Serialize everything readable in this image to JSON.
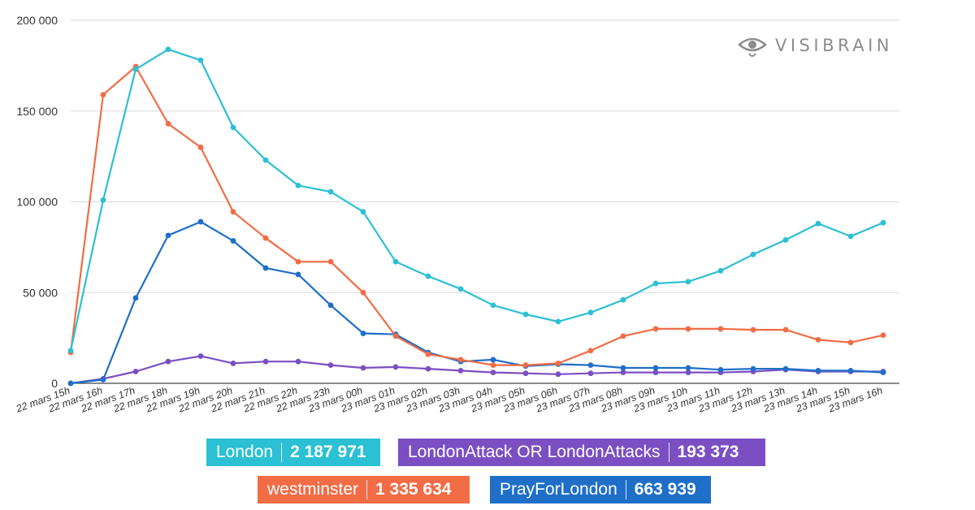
{
  "brand": {
    "name": "VISIBRAIN",
    "icon": "eye-logo-icon"
  },
  "chart_data": {
    "type": "line",
    "title": "",
    "xlabel": "",
    "ylabel": "",
    "ylim": [
      0,
      200000
    ],
    "yticks": [
      0,
      50000,
      100000,
      150000,
      200000
    ],
    "ytick_labels": [
      "0",
      "50 000",
      "100 000",
      "150 000",
      "200 000"
    ],
    "grid": true,
    "categories": [
      "22 mars 15h",
      "22 mars 16h",
      "22 mars 17h",
      "22 mars 18h",
      "22 mars 19h",
      "22 mars 20h",
      "22 mars 21h",
      "22 mars 22h",
      "22 mars 23h",
      "23 mars 00h",
      "23 mars 01h",
      "23 mars 02h",
      "23 mars 03h",
      "23 mars 04h",
      "23 mars 05h",
      "23 mars 06h",
      "23 mars 07h",
      "23 mars 08h",
      "23 mars 09h",
      "23 mars 10h",
      "23 mars 11h",
      "23 mars 12h",
      "23 mars 13h",
      "23 mars 14h",
      "23 mars 15h",
      "23 mars 16h"
    ],
    "series": [
      {
        "name": "London",
        "total": "2 187 971",
        "color": "#2bc0d3",
        "values": [
          18000,
          101000,
          173000,
          184000,
          178000,
          141000,
          123000,
          109000,
          105500,
          94500,
          67000,
          59000,
          52000,
          43000,
          38000,
          34000,
          39000,
          46000,
          55000,
          56000,
          62000,
          71000,
          79000,
          88000,
          81000,
          88500
        ]
      },
      {
        "name": "westminster",
        "total": "1 335 634",
        "color": "#f26c45",
        "values": [
          17000,
          159000,
          174500,
          143000,
          130000,
          94500,
          80000,
          67000,
          67000,
          50000,
          26000,
          16000,
          13000,
          10000,
          10000,
          11000,
          18000,
          26000,
          30000,
          30000,
          30000,
          29500,
          29500,
          24000,
          22500,
          26500
        ]
      },
      {
        "name": "PrayForLondon",
        "total": "663 939",
        "color": "#1f6fc9",
        "values": [
          0,
          2000,
          47000,
          81500,
          89000,
          78500,
          63500,
          60000,
          43000,
          27500,
          27000,
          17000,
          12000,
          13000,
          9500,
          10500,
          10000,
          8500,
          8500,
          8500,
          7500,
          8000,
          8000,
          7000,
          7000,
          6000
        ]
      },
      {
        "name": "LondonAttack OR LondonAttacks",
        "total": "193 373",
        "color": "#7b4fc2",
        "values": [
          0,
          2500,
          6500,
          12000,
          15000,
          11000,
          12000,
          12000,
          10000,
          8500,
          9000,
          8000,
          7000,
          6000,
          5500,
          5000,
          5500,
          6000,
          6000,
          6000,
          6000,
          6500,
          7500,
          6500,
          6500,
          6500
        ]
      }
    ]
  },
  "legend_order": [
    0,
    3,
    1,
    2
  ]
}
